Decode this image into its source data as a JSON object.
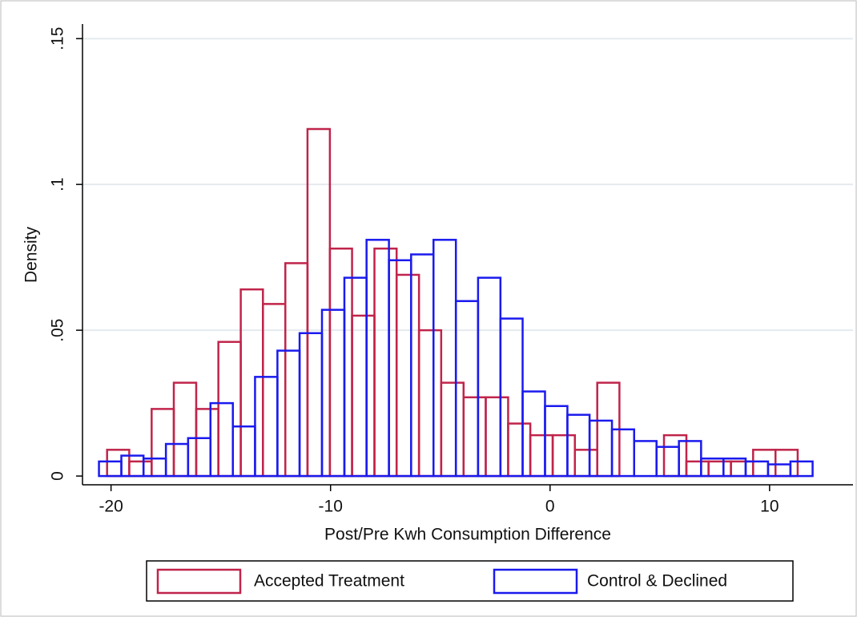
{
  "chart_data": {
    "type": "histogram",
    "x_label": "Post/Pre Kwh Consumption Difference",
    "y_label": "Density",
    "xlim": [
      -21.3,
      13.8
    ],
    "xticks": [
      -20,
      -10,
      0,
      10
    ],
    "ylim": [
      -0.003,
      0.155
    ],
    "yticks": [
      0,
      {
        "value": 0.05,
        "label": ".05"
      },
      {
        "value": 0.1,
        "label": ".1"
      },
      {
        "value": 0.15,
        "label": ".15"
      }
    ],
    "grid": true,
    "legend": "bottom",
    "series": [
      {
        "name": "Accepted Treatment",
        "color": "#c0244a",
        "bins": [
          -20.18,
          -19.17,
          -18.15,
          -17.14,
          -16.12,
          -15.11,
          -14.09,
          -13.08,
          -12.06,
          -11.05,
          -10.03,
          -9.02,
          -8.0,
          -6.99,
          -5.97,
          -4.96,
          -3.94,
          -2.93,
          -1.91,
          -0.9,
          0.12,
          1.13,
          2.15,
          3.16,
          4.18,
          5.19,
          6.21,
          7.22,
          8.24,
          9.25,
          10.27,
          11.28
        ],
        "values": [
          0.009,
          0.005,
          0.023,
          0.032,
          0.023,
          0.046,
          0.064,
          0.059,
          0.073,
          0.119,
          0.078,
          0.055,
          0.078,
          0.069,
          0.05,
          0.032,
          0.027,
          0.027,
          0.018,
          0.014,
          0.014,
          0.009,
          0.032,
          0,
          0,
          0.014,
          0.005,
          0.005,
          0.005,
          0.009,
          0.009
        ]
      },
      {
        "name": "Control & Declined",
        "color": "#1a1aee",
        "bins": [
          -20.55,
          -19.53,
          -18.52,
          -17.5,
          -16.49,
          -15.47,
          -14.45,
          -13.44,
          -12.42,
          -11.41,
          -10.39,
          -9.37,
          -8.36,
          -7.34,
          -6.33,
          -5.31,
          -4.29,
          -3.28,
          -2.26,
          -1.25,
          -0.23,
          0.79,
          1.8,
          2.82,
          3.83,
          4.85,
          5.87,
          6.88,
          7.9,
          8.91,
          9.93,
          10.95,
          11.96,
          12.98
        ],
        "values": [
          0.005,
          0.007,
          0.006,
          0.011,
          0.013,
          0.025,
          0.017,
          0.034,
          0.043,
          0.049,
          0.057,
          0.068,
          0.081,
          0.074,
          0.076,
          0.081,
          0.06,
          0.068,
          0.054,
          0.029,
          0.024,
          0.021,
          0.019,
          0.016,
          0.012,
          0.01,
          0.012,
          0.006,
          0.006,
          0.005,
          0.004,
          0.005,
          0
        ]
      }
    ]
  }
}
